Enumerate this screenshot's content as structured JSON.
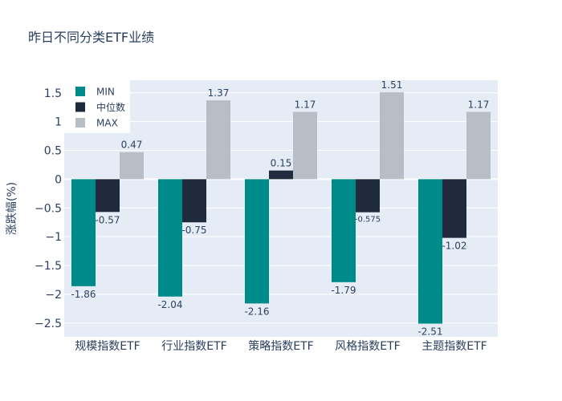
{
  "chart_data": {
    "type": "bar",
    "title": "昨日不同分类ETF业绩",
    "xlabel": "",
    "ylabel": "涨跌幅(%)",
    "categories": [
      "规模指数ETF",
      "行业指数ETF",
      "策略指数ETF",
      "风格指数ETF",
      "主题指数ETF"
    ],
    "series": [
      {
        "name": "MIN",
        "color": "#008b8b",
        "values": [
          -1.86,
          -2.04,
          -2.16,
          -1.79,
          -2.51
        ],
        "labels": [
          "-1.86",
          "-2.04",
          "-2.16",
          "-1.79",
          "-2.51"
        ]
      },
      {
        "name": "中位数",
        "color": "#1f2a3c",
        "values": [
          -0.57,
          -0.75,
          0.15,
          -0.575,
          -1.02
        ],
        "labels": [
          "-0.57",
          "-0.75",
          "0.15",
          "-0.575",
          "-1.02"
        ]
      },
      {
        "name": "MAX",
        "color": "#b7bec6",
        "values": [
          0.47,
          1.37,
          1.17,
          1.51,
          1.17
        ],
        "labels": [
          "0.47",
          "1.37",
          "1.17",
          "1.51",
          "1.17"
        ]
      }
    ],
    "ylim": [
      -2.74,
      1.72
    ],
    "yticks": [
      -2.5,
      -2,
      -1.5,
      -1,
      -0.5,
      0,
      0.5,
      1,
      1.5
    ],
    "ytick_labels": [
      "−2.5",
      "−2",
      "−1.5",
      "−1",
      "−0.5",
      "0",
      "0.5",
      "1",
      "1.5"
    ],
    "grid": true,
    "legend_position": "top-left",
    "plot_background": "#e5ecf6"
  }
}
